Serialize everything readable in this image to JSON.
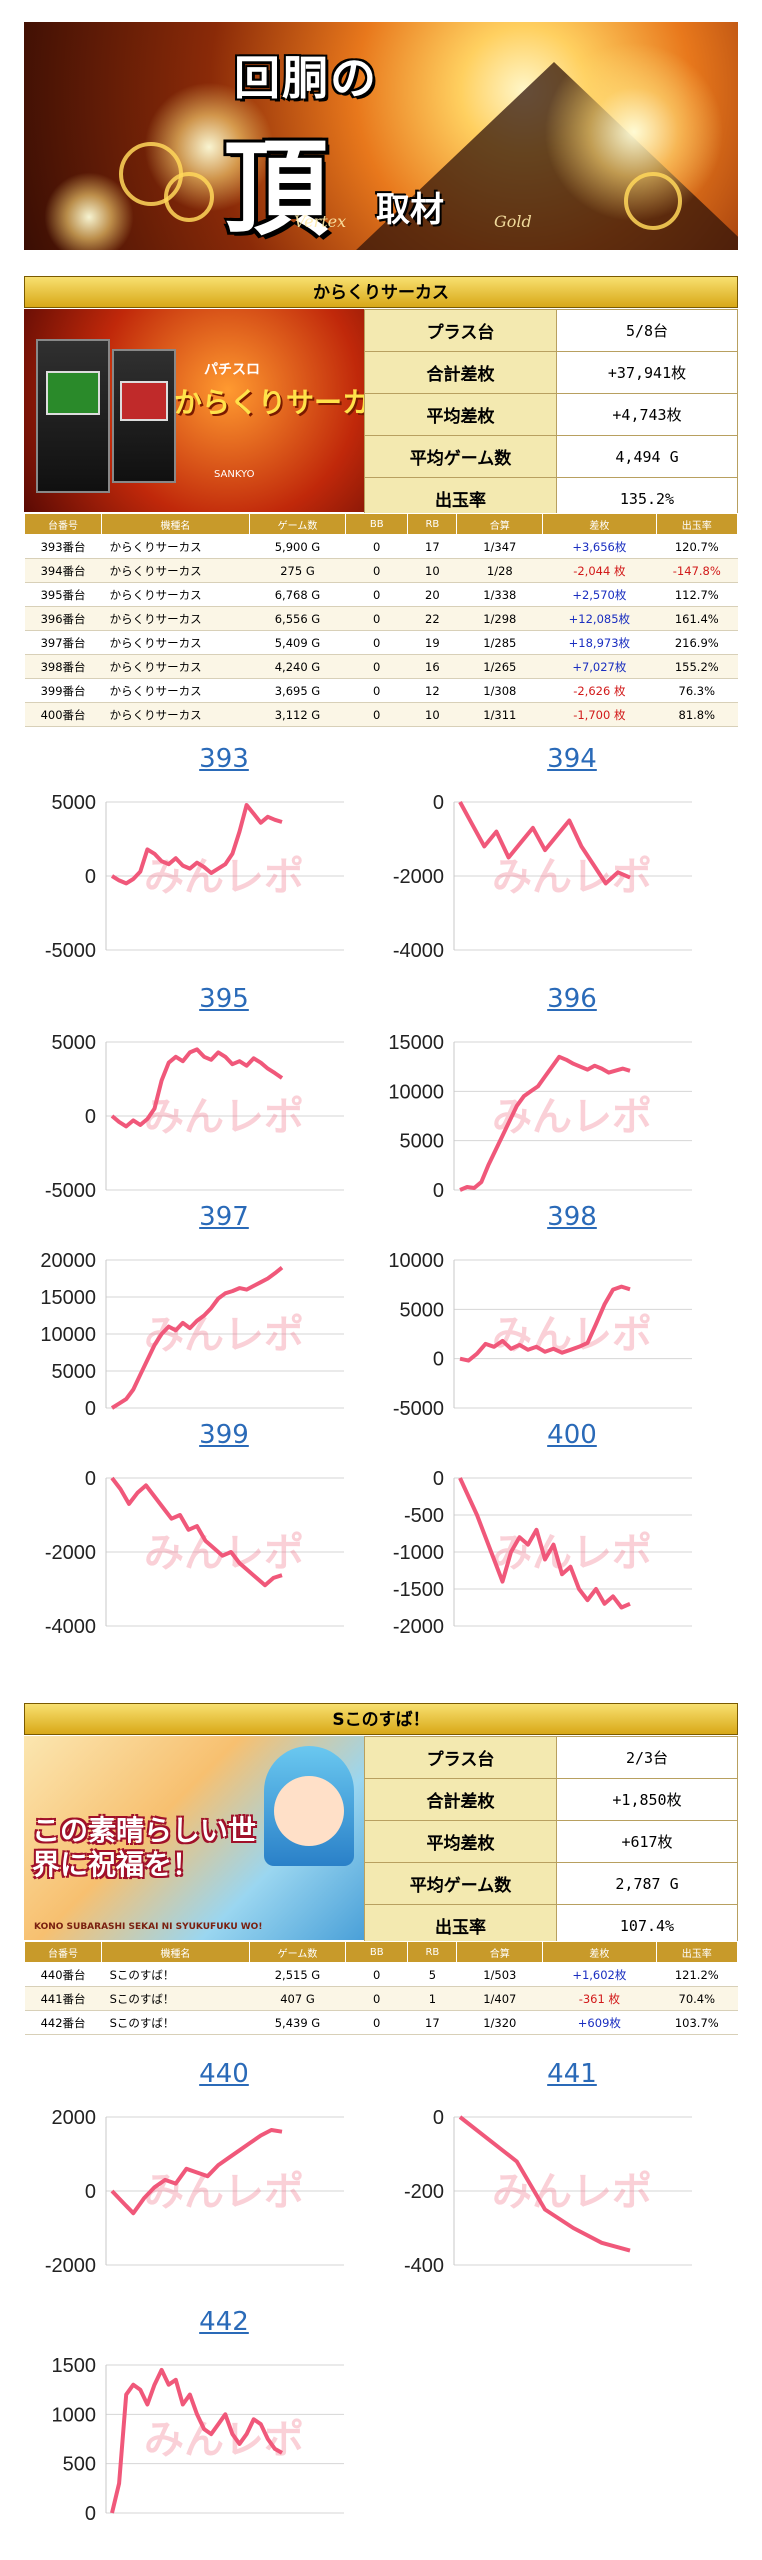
{
  "banner": {
    "line1": "回胴の",
    "line2": "頂",
    "line3": "取材",
    "tag1": "Vertex",
    "tag2": "Gold"
  },
  "sections": [
    {
      "title": "からくりサーカス",
      "image": {
        "logo_top": "パチスロ",
        "logo_main": "からくりサーカス",
        "publisher": "SANKYO"
      },
      "summary": [
        {
          "label": "プラス台",
          "value": "5/8台"
        },
        {
          "label": "合計差枚",
          "value": "+37,941枚"
        },
        {
          "label": "平均差枚",
          "value": "+4,743枚"
        },
        {
          "label": "平均ゲーム数",
          "value": "4,494 G"
        },
        {
          "label": "出玉率",
          "value": "135.2%"
        }
      ],
      "headers": [
        "台番号",
        "機種名",
        "ゲーム数",
        "BB",
        "RB",
        "合算",
        "差枚",
        "出玉率"
      ],
      "rows": [
        [
          "393番台",
          "からくりサーカス",
          "5,900 G",
          "0",
          "17",
          "1/347",
          "+3,656枚",
          "120.7%"
        ],
        [
          "394番台",
          "からくりサーカス",
          "275 G",
          "0",
          "10",
          "1/28",
          "-2,044 枚",
          "-147.8%"
        ],
        [
          "395番台",
          "からくりサーカス",
          "6,768 G",
          "0",
          "20",
          "1/338",
          "+2,570枚",
          "112.7%"
        ],
        [
          "396番台",
          "からくりサーカス",
          "6,556 G",
          "0",
          "22",
          "1/298",
          "+12,085枚",
          "161.4%"
        ],
        [
          "397番台",
          "からくりサーカス",
          "5,409 G",
          "0",
          "19",
          "1/285",
          "+18,973枚",
          "216.9%"
        ],
        [
          "398番台",
          "からくりサーカス",
          "4,240 G",
          "0",
          "16",
          "1/265",
          "+7,027枚",
          "155.2%"
        ],
        [
          "399番台",
          "からくりサーカス",
          "3,695 G",
          "0",
          "12",
          "1/308",
          "-2,626 枚",
          "76.3%"
        ],
        [
          "400番台",
          "からくりサーカス",
          "3,112 G",
          "0",
          "10",
          "1/311",
          "-1,700 枚",
          "81.8%"
        ]
      ]
    },
    {
      "title": "Sこのすば！",
      "image": {
        "logo_main": "この素晴らしい世界に祝福を！",
        "subtitle": "KONO SUBARASHI SEKAI NI SYUKUFUKU WO!"
      },
      "summary": [
        {
          "label": "プラス台",
          "value": "2/3台"
        },
        {
          "label": "合計差枚",
          "value": "+1,850枚"
        },
        {
          "label": "平均差枚",
          "value": "+617枚"
        },
        {
          "label": "平均ゲーム数",
          "value": "2,787 G"
        },
        {
          "label": "出玉率",
          "value": "107.4%"
        }
      ],
      "headers": [
        "台番号",
        "機種名",
        "ゲーム数",
        "BB",
        "RB",
        "合算",
        "差枚",
        "出玉率"
      ],
      "rows": [
        [
          "440番台",
          "Sこのすば！",
          "2,515 G",
          "0",
          "5",
          "1/503",
          "+1,602枚",
          "121.2%"
        ],
        [
          "441番台",
          "Sこのすば！",
          "407 G",
          "0",
          "1",
          "1/407",
          "-361 枚",
          "70.4%"
        ],
        [
          "442番台",
          "Sこのすば！",
          "5,439 G",
          "0",
          "17",
          "1/320",
          "+609枚",
          "103.7%"
        ]
      ]
    }
  ],
  "watermark": "みんレポ",
  "colors": {
    "line": "#f0587a",
    "positive": "#1a2ec0",
    "negative": "#d21a1a",
    "title_link": "#2a6ab8",
    "header_gold": "#d8a818"
  },
  "chart_data": [
    {
      "type": "line",
      "title": "393",
      "yticks": [
        5000,
        0,
        -5000
      ],
      "ylim": [
        -5000,
        5000
      ],
      "x": [
        0,
        1,
        2,
        3,
        4,
        5,
        6,
        7,
        8,
        9,
        10,
        11,
        12,
        13,
        14,
        15,
        16,
        17,
        18,
        19,
        20,
        21,
        22,
        23,
        24
      ],
      "y": [
        0,
        -300,
        -500,
        -200,
        300,
        1800,
        1500,
        1000,
        800,
        1200,
        700,
        500,
        900,
        600,
        200,
        500,
        800,
        1500,
        3000,
        4800,
        4200,
        3600,
        4000,
        3800,
        3650
      ]
    },
    {
      "type": "line",
      "title": "394",
      "yticks": [
        0,
        -2000,
        -4000
      ],
      "ylim": [
        -4000,
        0
      ],
      "x": [
        0,
        1,
        2,
        3,
        4,
        5,
        6,
        7,
        8,
        9,
        10,
        11,
        12,
        13,
        14
      ],
      "y": [
        0,
        -600,
        -1200,
        -800,
        -1500,
        -1100,
        -700,
        -1300,
        -900,
        -500,
        -1200,
        -1700,
        -2200,
        -1900,
        -2044
      ]
    },
    {
      "type": "line",
      "title": "395",
      "yticks": [
        5000,
        0,
        -5000
      ],
      "ylim": [
        -5000,
        5000
      ],
      "x": [
        0,
        1,
        2,
        3,
        4,
        5,
        6,
        7,
        8,
        9,
        10,
        11,
        12,
        13,
        14,
        15,
        16,
        17,
        18,
        19,
        20,
        21,
        22,
        23,
        24
      ],
      "y": [
        0,
        -400,
        -700,
        -300,
        -600,
        -200,
        500,
        2400,
        3600,
        4000,
        3700,
        4300,
        4500,
        4000,
        3800,
        4300,
        4000,
        3500,
        3700,
        3400,
        3900,
        3600,
        3200,
        2900,
        2570
      ]
    },
    {
      "type": "line",
      "title": "396",
      "yticks": [
        15000,
        10000,
        5000,
        0
      ],
      "ylim": [
        0,
        15000
      ],
      "x": [
        0,
        1,
        2,
        3,
        4,
        5,
        6,
        7,
        8,
        9,
        10,
        11,
        12,
        13,
        14,
        15,
        16,
        17,
        18,
        19,
        20,
        21,
        22,
        23,
        24
      ],
      "y": [
        0,
        300,
        200,
        800,
        2500,
        4000,
        5500,
        7000,
        8500,
        9500,
        10000,
        10500,
        11500,
        12500,
        13500,
        13200,
        12800,
        12500,
        12200,
        12600,
        12300,
        11900,
        12100,
        12300,
        12085
      ]
    },
    {
      "type": "line",
      "title": "397",
      "yticks": [
        20000,
        15000,
        10000,
        5000,
        0
      ],
      "ylim": [
        0,
        20000
      ],
      "x": [
        0,
        1,
        2,
        3,
        4,
        5,
        6,
        7,
        8,
        9,
        10,
        11,
        12,
        13,
        14,
        15,
        16,
        17,
        18,
        19,
        20,
        21,
        22,
        23,
        24
      ],
      "y": [
        0,
        600,
        1200,
        2500,
        4500,
        6500,
        8500,
        10000,
        11000,
        10500,
        11500,
        10800,
        11800,
        12500,
        13500,
        14800,
        15500,
        15800,
        16200,
        16000,
        16500,
        17000,
        17500,
        18200,
        18973
      ]
    },
    {
      "type": "line",
      "title": "398",
      "yticks": [
        10000,
        5000,
        0,
        -5000
      ],
      "ylim": [
        -5000,
        10000
      ],
      "x": [
        0,
        1,
        2,
        3,
        4,
        5,
        6,
        7,
        8,
        9,
        10,
        11,
        12,
        13,
        14,
        15,
        16,
        17,
        18,
        19,
        20
      ],
      "y": [
        0,
        -200,
        500,
        1500,
        1200,
        1800,
        1000,
        1400,
        900,
        1200,
        700,
        1000,
        600,
        900,
        1200,
        1600,
        3500,
        5500,
        7000,
        7300,
        7027
      ]
    },
    {
      "type": "line",
      "title": "399",
      "yticks": [
        0,
        -2000,
        -4000
      ],
      "ylim": [
        -4000,
        0
      ],
      "x": [
        0,
        1,
        2,
        3,
        4,
        5,
        6,
        7,
        8,
        9,
        10,
        11,
        12,
        13,
        14,
        15,
        16,
        17,
        18,
        19,
        20
      ],
      "y": [
        0,
        -300,
        -700,
        -400,
        -200,
        -500,
        -800,
        -1100,
        -1000,
        -1400,
        -1300,
        -1700,
        -1900,
        -2100,
        -2000,
        -2300,
        -2500,
        -2700,
        -2900,
        -2700,
        -2626
      ]
    },
    {
      "type": "line",
      "title": "400",
      "yticks": [
        0,
        -500,
        -1000,
        -1500,
        -2000
      ],
      "ylim": [
        -2000,
        0
      ],
      "x": [
        0,
        1,
        2,
        3,
        4,
        5,
        6,
        7,
        8,
        9,
        10,
        11,
        12,
        13,
        14,
        15,
        16,
        17,
        18,
        19,
        20
      ],
      "y": [
        0,
        -250,
        -500,
        -800,
        -1100,
        -1400,
        -1000,
        -800,
        -900,
        -700,
        -1100,
        -900,
        -1300,
        -1200,
        -1500,
        -1650,
        -1500,
        -1700,
        -1600,
        -1750,
        -1700
      ]
    },
    {
      "type": "line",
      "title": "440",
      "yticks": [
        2000,
        0,
        -2000
      ],
      "ylim": [
        -2000,
        2000
      ],
      "x": [
        0,
        1,
        2,
        3,
        4,
        5,
        6,
        7,
        8,
        9,
        10,
        11,
        12,
        13,
        14,
        15,
        16
      ],
      "y": [
        0,
        -300,
        -600,
        -200,
        100,
        300,
        200,
        600,
        500,
        400,
        700,
        900,
        1100,
        1300,
        1500,
        1650,
        1602
      ]
    },
    {
      "type": "line",
      "title": "441",
      "yticks": [
        0,
        -200,
        -400
      ],
      "ylim": [
        -400,
        0
      ],
      "x": [
        0,
        1,
        2,
        3,
        4,
        5,
        6
      ],
      "y": [
        0,
        -60,
        -120,
        -250,
        -300,
        -340,
        -361
      ]
    },
    {
      "type": "line",
      "title": "442",
      "yticks": [
        1500,
        1000,
        500,
        0
      ],
      "ylim": [
        0,
        1500
      ],
      "x": [
        0,
        1,
        2,
        3,
        4,
        5,
        6,
        7,
        8,
        9,
        10,
        11,
        12,
        13,
        14,
        15,
        16,
        17,
        18,
        19,
        20,
        21,
        22,
        23,
        24
      ],
      "y": [
        0,
        300,
        1200,
        1300,
        1250,
        1100,
        1300,
        1450,
        1300,
        1350,
        1100,
        1200,
        1000,
        850,
        800,
        900,
        1000,
        800,
        700,
        800,
        950,
        900,
        750,
        650,
        609
      ]
    }
  ]
}
